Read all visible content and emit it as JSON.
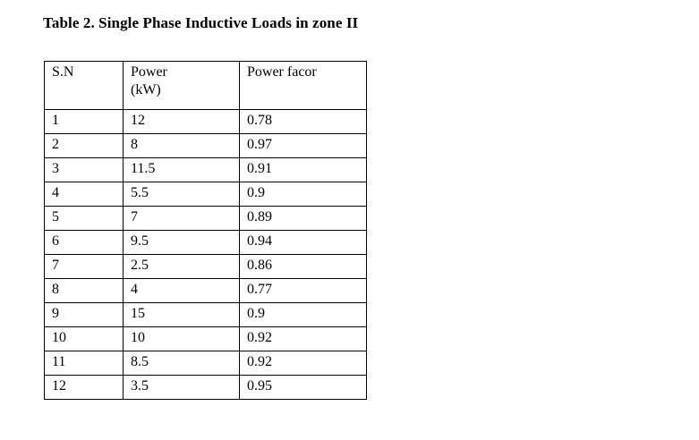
{
  "caption": "Table 2. Single Phase Inductive Loads in zone II",
  "table": {
    "headers": [
      {
        "label": "S.N",
        "sublabel": ""
      },
      {
        "label": "Power",
        "sublabel": "(kW)"
      },
      {
        "label": "Power facor",
        "sublabel": ""
      }
    ],
    "rows": [
      [
        "1",
        "12",
        "0.78"
      ],
      [
        "2",
        "8",
        "0.97"
      ],
      [
        "3",
        "11.5",
        "0.91"
      ],
      [
        "4",
        "5.5",
        "0.9"
      ],
      [
        "5",
        "7",
        "0.89"
      ],
      [
        "6",
        "9.5",
        "0.94"
      ],
      [
        "7",
        "2.5",
        "0.86"
      ],
      [
        "8",
        "4",
        "0.77"
      ],
      [
        "9",
        "15",
        "0.9"
      ],
      [
        "10",
        "10",
        "0.92"
      ],
      [
        "11",
        "8.5",
        "0.92"
      ],
      [
        "12",
        "3.5",
        "0.95"
      ]
    ]
  },
  "chart_data": {
    "type": "table",
    "title": "Table 2. Single Phase Inductive Loads in zone II",
    "categories": [
      "S.N",
      "Power (kW)",
      "Power facor"
    ],
    "series": [
      {
        "name": "Power (kW)",
        "values": [
          12,
          8,
          11.5,
          5.5,
          7,
          9.5,
          2.5,
          4,
          15,
          10,
          8.5,
          3.5
        ]
      },
      {
        "name": "Power facor",
        "values": [
          0.78,
          0.97,
          0.91,
          0.9,
          0.89,
          0.94,
          0.86,
          0.77,
          0.9,
          0.92,
          0.92,
          0.95
        ]
      }
    ]
  }
}
